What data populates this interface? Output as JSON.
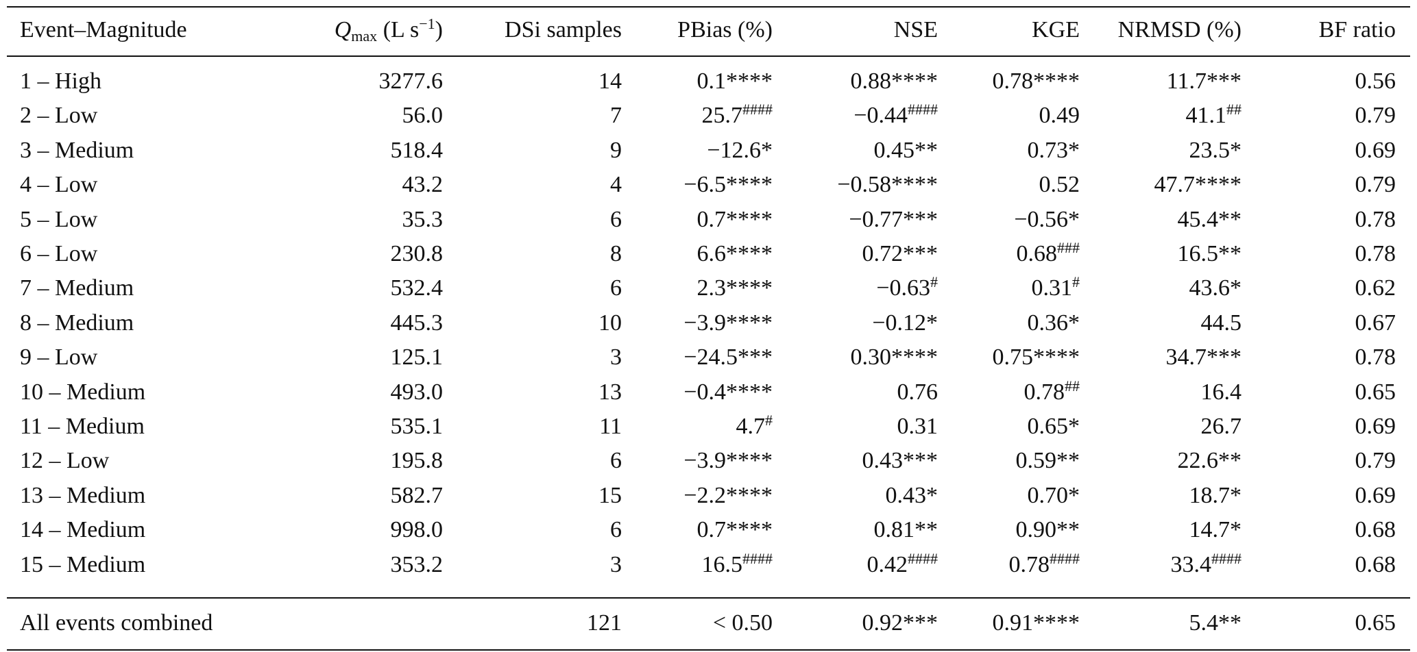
{
  "table": {
    "header": [
      "Event–Magnitude",
      {
        "symbol": "Q",
        "subscript": "max",
        "unit": "(L s",
        "exponent": "−1",
        "close": ")"
      },
      "DSi samples",
      "PBias (%)",
      "NSE",
      "KGE",
      "NRMSD (%)",
      "BF ratio"
    ],
    "rows": [
      [
        "1 – High",
        "3277.6",
        "14",
        "0.1****",
        "0.88****",
        "0.78****",
        "11.7***",
        "0.56"
      ],
      [
        "2 – Low",
        "56.0",
        "7",
        {
          "text": "25.7",
          "sup": "####"
        },
        {
          "text": "−0.44",
          "sup": "####"
        },
        "0.49",
        {
          "text": "41.1",
          "sup": "##"
        },
        "0.79"
      ],
      [
        "3 – Medium",
        "518.4",
        "9",
        "−12.6*",
        "0.45**",
        "0.73*",
        "23.5*",
        "0.69"
      ],
      [
        "4 – Low",
        "43.2",
        "4",
        "−6.5****",
        "−0.58****",
        "0.52",
        "47.7****",
        "0.79"
      ],
      [
        "5 – Low",
        "35.3",
        "6",
        "0.7****",
        "−0.77***",
        "−0.56*",
        "45.4**",
        "0.78"
      ],
      [
        "6 – Low",
        "230.8",
        "8",
        "6.6****",
        "0.72***",
        {
          "text": "0.68",
          "sup": "###"
        },
        "16.5**",
        "0.78"
      ],
      [
        "7 – Medium",
        "532.4",
        "6",
        "2.3****",
        {
          "text": "−0.63",
          "sup": "#"
        },
        {
          "text": "0.31",
          "sup": "#"
        },
        "43.6*",
        "0.62"
      ],
      [
        "8 – Medium",
        "445.3",
        "10",
        "−3.9****",
        "−0.12*",
        "0.36*",
        "44.5",
        "0.67"
      ],
      [
        "9 – Low",
        "125.1",
        "3",
        "−24.5***",
        "0.30****",
        "0.75****",
        "34.7***",
        "0.78"
      ],
      [
        "10 – Medium",
        "493.0",
        "13",
        "−0.4****",
        "0.76",
        {
          "text": "0.78",
          "sup": "##"
        },
        "16.4",
        "0.65"
      ],
      [
        "11 – Medium",
        "535.1",
        "11",
        {
          "text": "4.7",
          "sup": "#"
        },
        "0.31",
        "0.65*",
        "26.7",
        "0.69"
      ],
      [
        "12 – Low",
        "195.8",
        "6",
        "−3.9****",
        "0.43***",
        "0.59**",
        "22.6**",
        "0.79"
      ],
      [
        "13 – Medium",
        "582.7",
        "15",
        "−2.2****",
        "0.43*",
        "0.70*",
        "18.7*",
        "0.69"
      ],
      [
        "14 – Medium",
        "998.0",
        "6",
        "0.7****",
        "0.81**",
        "0.90**",
        "14.7*",
        "0.68"
      ],
      [
        "15 – Medium",
        "353.2",
        "3",
        {
          "text": "16.5",
          "sup": "####"
        },
        {
          "text": "0.42",
          "sup": "####"
        },
        {
          "text": "0.78",
          "sup": "####"
        },
        {
          "text": "33.4",
          "sup": "####"
        },
        "0.68"
      ]
    ],
    "summary": [
      "All events combined",
      null,
      "121",
      "< 0.50",
      "0.92***",
      "0.91****",
      "5.4**",
      "0.65"
    ]
  }
}
